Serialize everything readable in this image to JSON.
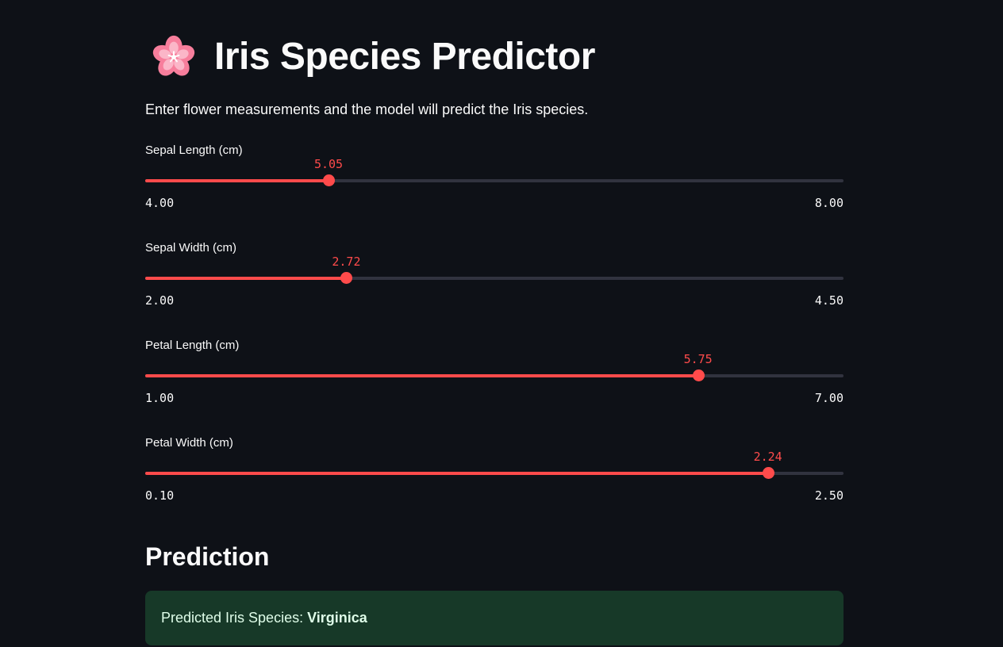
{
  "header": {
    "icon": "cherry-blossom-icon",
    "title": "Iris Species Predictor",
    "subtitle": "Enter flower measurements and the model will predict the Iris species."
  },
  "sliders": [
    {
      "label": "Sepal Length (cm)",
      "value": 5.05,
      "value_label": "5.05",
      "min": 4.0,
      "max": 8.0,
      "min_label": "4.00",
      "max_label": "8.00"
    },
    {
      "label": "Sepal Width (cm)",
      "value": 2.72,
      "value_label": "2.72",
      "min": 2.0,
      "max": 4.5,
      "min_label": "2.00",
      "max_label": "4.50"
    },
    {
      "label": "Petal Length (cm)",
      "value": 5.75,
      "value_label": "5.75",
      "min": 1.0,
      "max": 7.0,
      "min_label": "1.00",
      "max_label": "7.00"
    },
    {
      "label": "Petal Width (cm)",
      "value": 2.24,
      "value_label": "2.24",
      "min": 0.1,
      "max": 2.5,
      "min_label": "0.10",
      "max_label": "2.50"
    }
  ],
  "prediction": {
    "heading": "Prediction",
    "prefix": "Predicted Iris Species:",
    "species": "Virginica"
  },
  "colors": {
    "background": "#0e1117",
    "accent": "#ff4b4b",
    "track": "#31333f",
    "success_bg": "#173928",
    "success_text": "#dffde9"
  }
}
